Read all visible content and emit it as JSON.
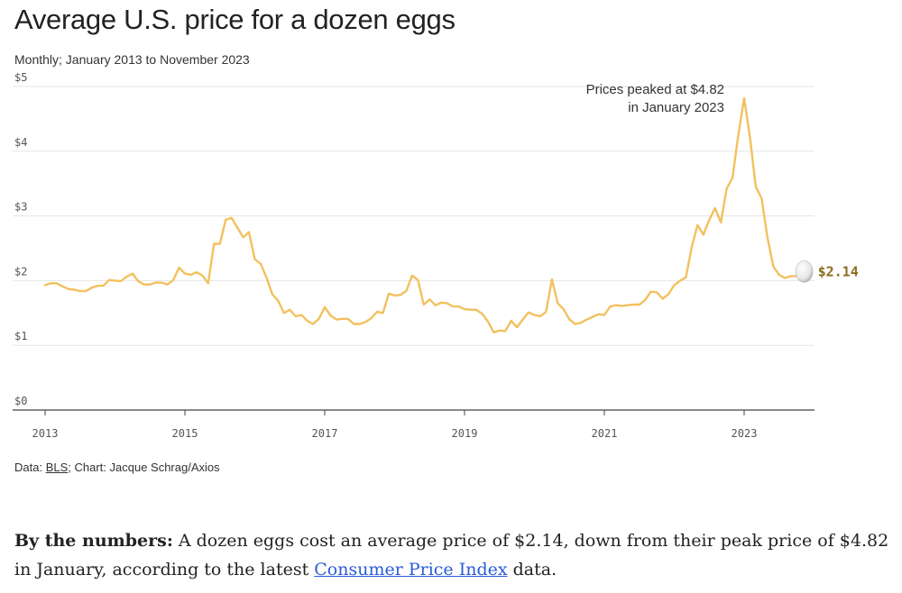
{
  "header": {
    "title": "Average U.S. price for a dozen eggs",
    "subtitle": "Monthly; January 2013 to November 2023"
  },
  "credit": {
    "prefix": "Data: ",
    "source_link": "BLS",
    "suffix": "; Chart: Jacque Schrag/Axios"
  },
  "body": {
    "lead": "By the numbers:",
    "text_1": " A dozen eggs cost an average price of ",
    "price_now": "$2.14",
    "text_2": ", down from their peak price of ",
    "price_peak": "$4.82",
    "text_3": " in January, according to the latest ",
    "link": "Consumer Price Index",
    "text_4": " data."
  },
  "colors": {
    "line": "#f2c15f",
    "grid": "#e5e5e5",
    "axis": "#444444",
    "end_label": "#8a6d1f"
  },
  "chart_data": {
    "type": "line",
    "ylim": [
      0,
      5
    ],
    "yticks": [
      0,
      1,
      2,
      3,
      4,
      5
    ],
    "ytick_labels": [
      "$0",
      "$1",
      "$2",
      "$3",
      "$4",
      "$5"
    ],
    "xlim": [
      "2013-01",
      "2023-11"
    ],
    "xticks": [
      2013,
      2015,
      2017,
      2019,
      2021,
      2023
    ],
    "xtick_labels": [
      "2013",
      "2015",
      "2017",
      "2019",
      "2021",
      "2023"
    ],
    "grid": true,
    "annotation": {
      "line1": "Prices peaked at $4.82",
      "line2": "in January 2023",
      "date": "2023-01",
      "value": 4.82
    },
    "end_label": "$2.14",
    "series": [
      {
        "start": "2013-01",
        "frequency": "monthly",
        "values": [
          1.93,
          1.96,
          1.96,
          1.91,
          1.87,
          1.86,
          1.84,
          1.84,
          1.89,
          1.92,
          1.92,
          2.01,
          2.0,
          1.99,
          2.06,
          2.11,
          1.99,
          1.94,
          1.94,
          1.97,
          1.97,
          1.94,
          2.01,
          2.2,
          2.11,
          2.09,
          2.13,
          2.08,
          1.96,
          2.57,
          2.57,
          2.94,
          2.97,
          2.82,
          2.67,
          2.75,
          2.33,
          2.26,
          2.05,
          1.79,
          1.69,
          1.5,
          1.55,
          1.45,
          1.47,
          1.38,
          1.33,
          1.41,
          1.59,
          1.46,
          1.4,
          1.41,
          1.41,
          1.33,
          1.33,
          1.36,
          1.42,
          1.52,
          1.5,
          1.8,
          1.77,
          1.78,
          1.84,
          2.08,
          2.01,
          1.63,
          1.71,
          1.62,
          1.66,
          1.65,
          1.6,
          1.6,
          1.56,
          1.55,
          1.55,
          1.49,
          1.37,
          1.2,
          1.23,
          1.22,
          1.38,
          1.28,
          1.4,
          1.51,
          1.47,
          1.45,
          1.52,
          2.02,
          1.65,
          1.56,
          1.4,
          1.33,
          1.35,
          1.4,
          1.44,
          1.48,
          1.47,
          1.6,
          1.62,
          1.61,
          1.62,
          1.63,
          1.63,
          1.7,
          1.83,
          1.82,
          1.72,
          1.79,
          1.93,
          2.0,
          2.05,
          2.52,
          2.86,
          2.71,
          2.94,
          3.12,
          2.9,
          3.42,
          3.59,
          4.25,
          4.82,
          4.21,
          3.45,
          3.27,
          2.67,
          2.22,
          2.09,
          2.04,
          2.07,
          2.07,
          2.14
        ]
      }
    ]
  }
}
